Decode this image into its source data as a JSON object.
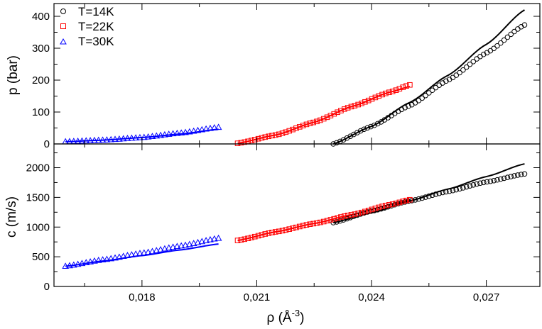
{
  "chart_data": [
    {
      "type": "scatter",
      "panel": "top",
      "ylabel": "p (bar)",
      "xlabel": "",
      "xlim": [
        0.0157,
        0.0284
      ],
      "ylim": [
        0,
        440
      ],
      "yticks": [
        0,
        100,
        200,
        300,
        400
      ],
      "ytick_labels": [
        "0",
        "100",
        "200",
        "300",
        "400"
      ],
      "xticks": [
        0.018,
        0.021,
        0.024,
        0.027
      ],
      "legend": {
        "position": "top-left",
        "entries": [
          {
            "label": "T=14K",
            "marker": "circle",
            "color": "#000000"
          },
          {
            "label": "T=22K",
            "marker": "square",
            "color": "#ff0000"
          },
          {
            "label": "T=30K",
            "marker": "triangle",
            "color": "#0000ff"
          }
        ]
      },
      "series": [
        {
          "name": "T=14K",
          "color": "#000000",
          "marker": "circle",
          "rho_start": 0.023,
          "rho_end": 0.028,
          "count": 57,
          "points": [
            [
              0.023,
              0
            ],
            [
              0.024,
              55
            ],
            [
              0.025,
              120
            ],
            [
              0.026,
              200
            ],
            [
              0.027,
              285
            ],
            [
              0.028,
              373
            ]
          ],
          "model_line": [
            [
              0.023,
              0
            ],
            [
              0.024,
              55
            ],
            [
              0.025,
              130
            ],
            [
              0.026,
              215
            ],
            [
              0.027,
              312
            ],
            [
              0.028,
              420
            ]
          ]
        },
        {
          "name": "T=22K",
          "color": "#ff0000",
          "marker": "square",
          "rho_start": 0.0205,
          "rho_end": 0.025,
          "count": 51,
          "points": [
            [
              0.0205,
              2
            ],
            [
              0.0215,
              28
            ],
            [
              0.0225,
              68
            ],
            [
              0.0235,
              118
            ],
            [
              0.0245,
              163
            ],
            [
              0.025,
              185
            ]
          ],
          "model_line": [
            [
              0.0205,
              2
            ],
            [
              0.0215,
              28
            ],
            [
              0.0225,
              68
            ],
            [
              0.0235,
              118
            ],
            [
              0.0245,
              163
            ],
            [
              0.025,
              180
            ]
          ]
        },
        {
          "name": "T=30K",
          "color": "#0000ff",
          "marker": "triangle",
          "rho_start": 0.016,
          "rho_end": 0.02,
          "count": 38,
          "points": [
            [
              0.016,
              7
            ],
            [
              0.017,
              12
            ],
            [
              0.018,
              20
            ],
            [
              0.019,
              34
            ],
            [
              0.02,
              52
            ]
          ],
          "model_line": [
            [
              0.016,
              7
            ],
            [
              0.017,
              12
            ],
            [
              0.018,
              20
            ],
            [
              0.019,
              31
            ],
            [
              0.02,
              46
            ]
          ]
        }
      ]
    },
    {
      "type": "scatter",
      "panel": "bottom",
      "ylabel": "c (m/s)",
      "xlabel": "ρ (Å-3)",
      "xlabel_base": "ρ (Å",
      "xlabel_sup": "-3",
      "xlabel_end": ")",
      "xlim": [
        0.0157,
        0.0284
      ],
      "ylim": [
        0,
        2400
      ],
      "yticks": [
        0,
        500,
        1000,
        1500,
        2000
      ],
      "ytick_labels": [
        "0",
        "500",
        "1000",
        "1500",
        "2000"
      ],
      "xticks": [
        0.018,
        0.021,
        0.024,
        0.027
      ],
      "xtick_labels": [
        "0,018",
        "0,021",
        "0,024",
        "0,027"
      ],
      "series": [
        {
          "name": "T=14K",
          "color": "#000000",
          "marker": "circle",
          "rho_start": 0.023,
          "rho_end": 0.028,
          "count": 57,
          "points": [
            [
              0.023,
              1075
            ],
            [
              0.024,
              1270
            ],
            [
              0.025,
              1440
            ],
            [
              0.026,
              1600
            ],
            [
              0.027,
              1760
            ],
            [
              0.028,
              1895
            ]
          ],
          "model_line": [
            [
              0.023,
              1075
            ],
            [
              0.024,
              1240
            ],
            [
              0.025,
              1440
            ],
            [
              0.026,
              1640
            ],
            [
              0.027,
              1850
            ],
            [
              0.028,
              2065
            ]
          ]
        },
        {
          "name": "T=22K",
          "color": "#ff0000",
          "marker": "square",
          "rho_start": 0.0205,
          "rho_end": 0.025,
          "count": 51,
          "points": [
            [
              0.0205,
              775
            ],
            [
              0.0215,
              920
            ],
            [
              0.0225,
              1060
            ],
            [
              0.0235,
              1210
            ],
            [
              0.0245,
              1380
            ],
            [
              0.025,
              1460
            ]
          ],
          "model_line": [
            [
              0.0205,
              775
            ],
            [
              0.0215,
              920
            ],
            [
              0.0225,
              1060
            ],
            [
              0.0235,
              1210
            ],
            [
              0.0245,
              1380
            ],
            [
              0.025,
              1460
            ]
          ]
        },
        {
          "name": "T=30K",
          "color": "#0000ff",
          "marker": "triangle",
          "rho_start": 0.016,
          "rho_end": 0.02,
          "count": 38,
          "points": [
            [
              0.016,
              340
            ],
            [
              0.017,
              450
            ],
            [
              0.018,
              560
            ],
            [
              0.019,
              680
            ],
            [
              0.02,
              810
            ]
          ],
          "model_line": [
            [
              0.016,
              340
            ],
            [
              0.017,
              430
            ],
            [
              0.018,
              520
            ],
            [
              0.019,
              615
            ],
            [
              0.02,
              715
            ]
          ]
        }
      ]
    }
  ]
}
